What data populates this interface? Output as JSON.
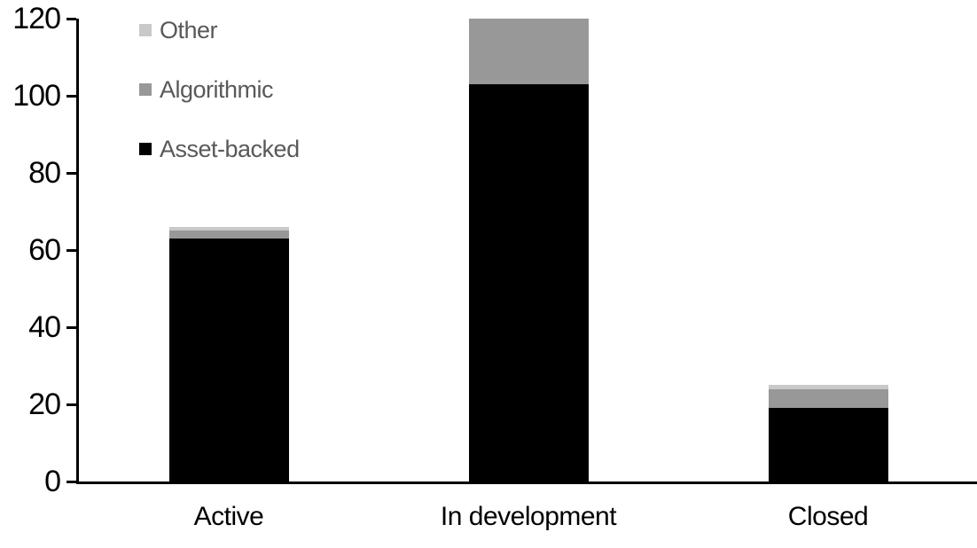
{
  "chart_data": {
    "type": "bar",
    "stacked": true,
    "title": "",
    "xlabel": "",
    "ylabel": "",
    "categories": [
      "Active",
      "In development",
      "Closed"
    ],
    "series": [
      {
        "name": "Asset-backed",
        "color": "#000000",
        "values": [
          63,
          103,
          19
        ]
      },
      {
        "name": "Algorithmic",
        "color": "#989898",
        "values": [
          2,
          17,
          5
        ]
      },
      {
        "name": "Other",
        "color": "#c9c9c9",
        "values": [
          1,
          0,
          1
        ]
      }
    ],
    "totals": [
      66,
      120,
      25
    ],
    "yticks": [
      0,
      20,
      40,
      60,
      80,
      100,
      120
    ],
    "ylim": [
      0,
      120
    ],
    "grid": false,
    "legend_position": "top-left",
    "legend_order": [
      "Other",
      "Algorithmic",
      "Asset-backed"
    ]
  },
  "colors": {
    "background": "#ffffff",
    "axis": "#000000",
    "tick_label": "#000000",
    "category_label": "#000000",
    "legend_text": "#595959"
  }
}
